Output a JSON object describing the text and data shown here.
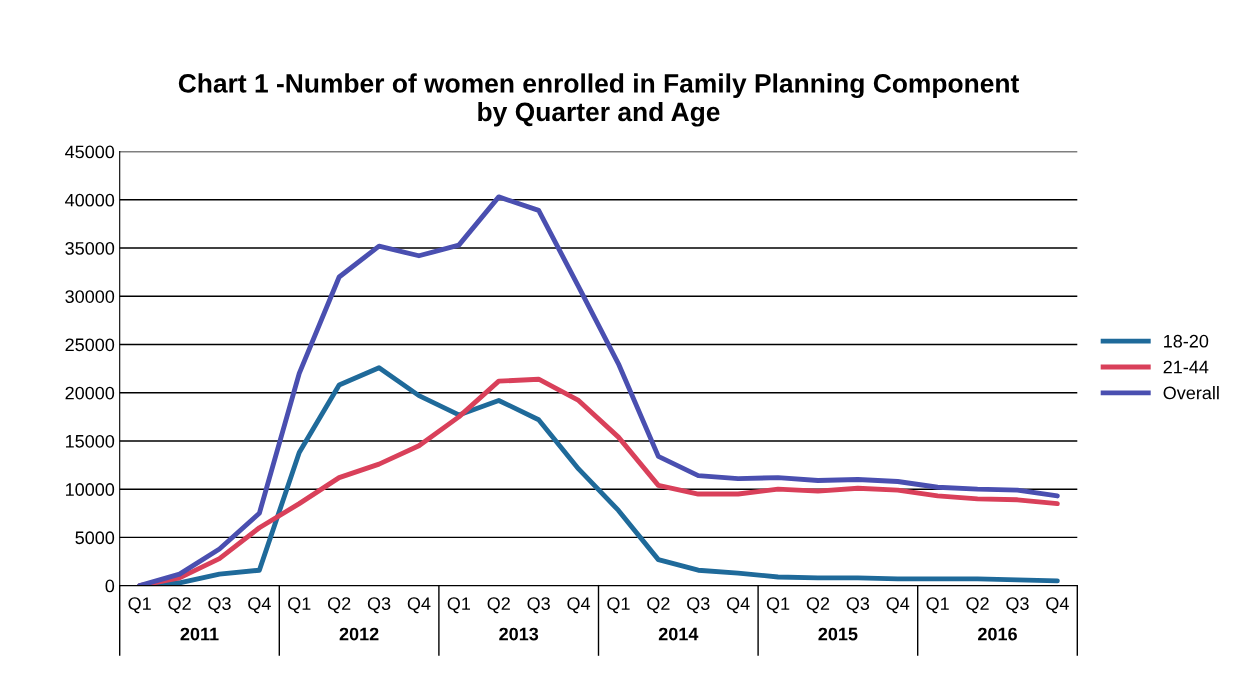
{
  "chart_data": {
    "type": "line",
    "title": "Chart 1 -Number of women enrolled in Family Planning Component\nby Quarter and Age",
    "categories": [
      "Q1",
      "Q2",
      "Q3",
      "Q4",
      "Q1",
      "Q2",
      "Q3",
      "Q4",
      "Q1",
      "Q2",
      "Q3",
      "Q4",
      "Q1",
      "Q2",
      "Q3",
      "Q4",
      "Q1",
      "Q2",
      "Q3",
      "Q4",
      "Q1",
      "Q2",
      "Q3",
      "Q4"
    ],
    "annotations": [
      "2011",
      "2012",
      "2013",
      "2014",
      "2015",
      "2016"
    ],
    "series": [
      {
        "name": "18-20",
        "color": "#1f6a9a",
        "values": [
          0,
          300,
          1200,
          1600,
          13800,
          20800,
          22600,
          19700,
          17700,
          19200,
          17200,
          12100,
          7800,
          2700,
          1600,
          1300,
          900,
          800,
          800,
          700,
          700,
          700,
          600,
          500
        ]
      },
      {
        "name": "21-44",
        "color": "#d9405a",
        "values": [
          0,
          800,
          2800,
          6000,
          8500,
          11200,
          12600,
          14500,
          17500,
          21200,
          21400,
          19200,
          15400,
          10400,
          9500,
          9500,
          10000,
          9800,
          10100,
          9900,
          9300,
          9000,
          8900,
          8500
        ]
      },
      {
        "name": "Overall",
        "color": "#4a4fb0",
        "values": [
          0,
          1200,
          3800,
          7500,
          22000,
          32000,
          35200,
          34200,
          35300,
          40300,
          38900,
          31000,
          23000,
          13400,
          11400,
          11100,
          11200,
          10900,
          11000,
          10800,
          10200,
          10000,
          9900,
          9300
        ]
      }
    ],
    "ylim": [
      0,
      45000
    ],
    "yticks": [
      0,
      5000,
      10000,
      15000,
      20000,
      25000,
      30000,
      35000,
      40000,
      45000
    ],
    "grid": "y",
    "legend": "right",
    "marker": "none",
    "line_style": "solid"
  }
}
